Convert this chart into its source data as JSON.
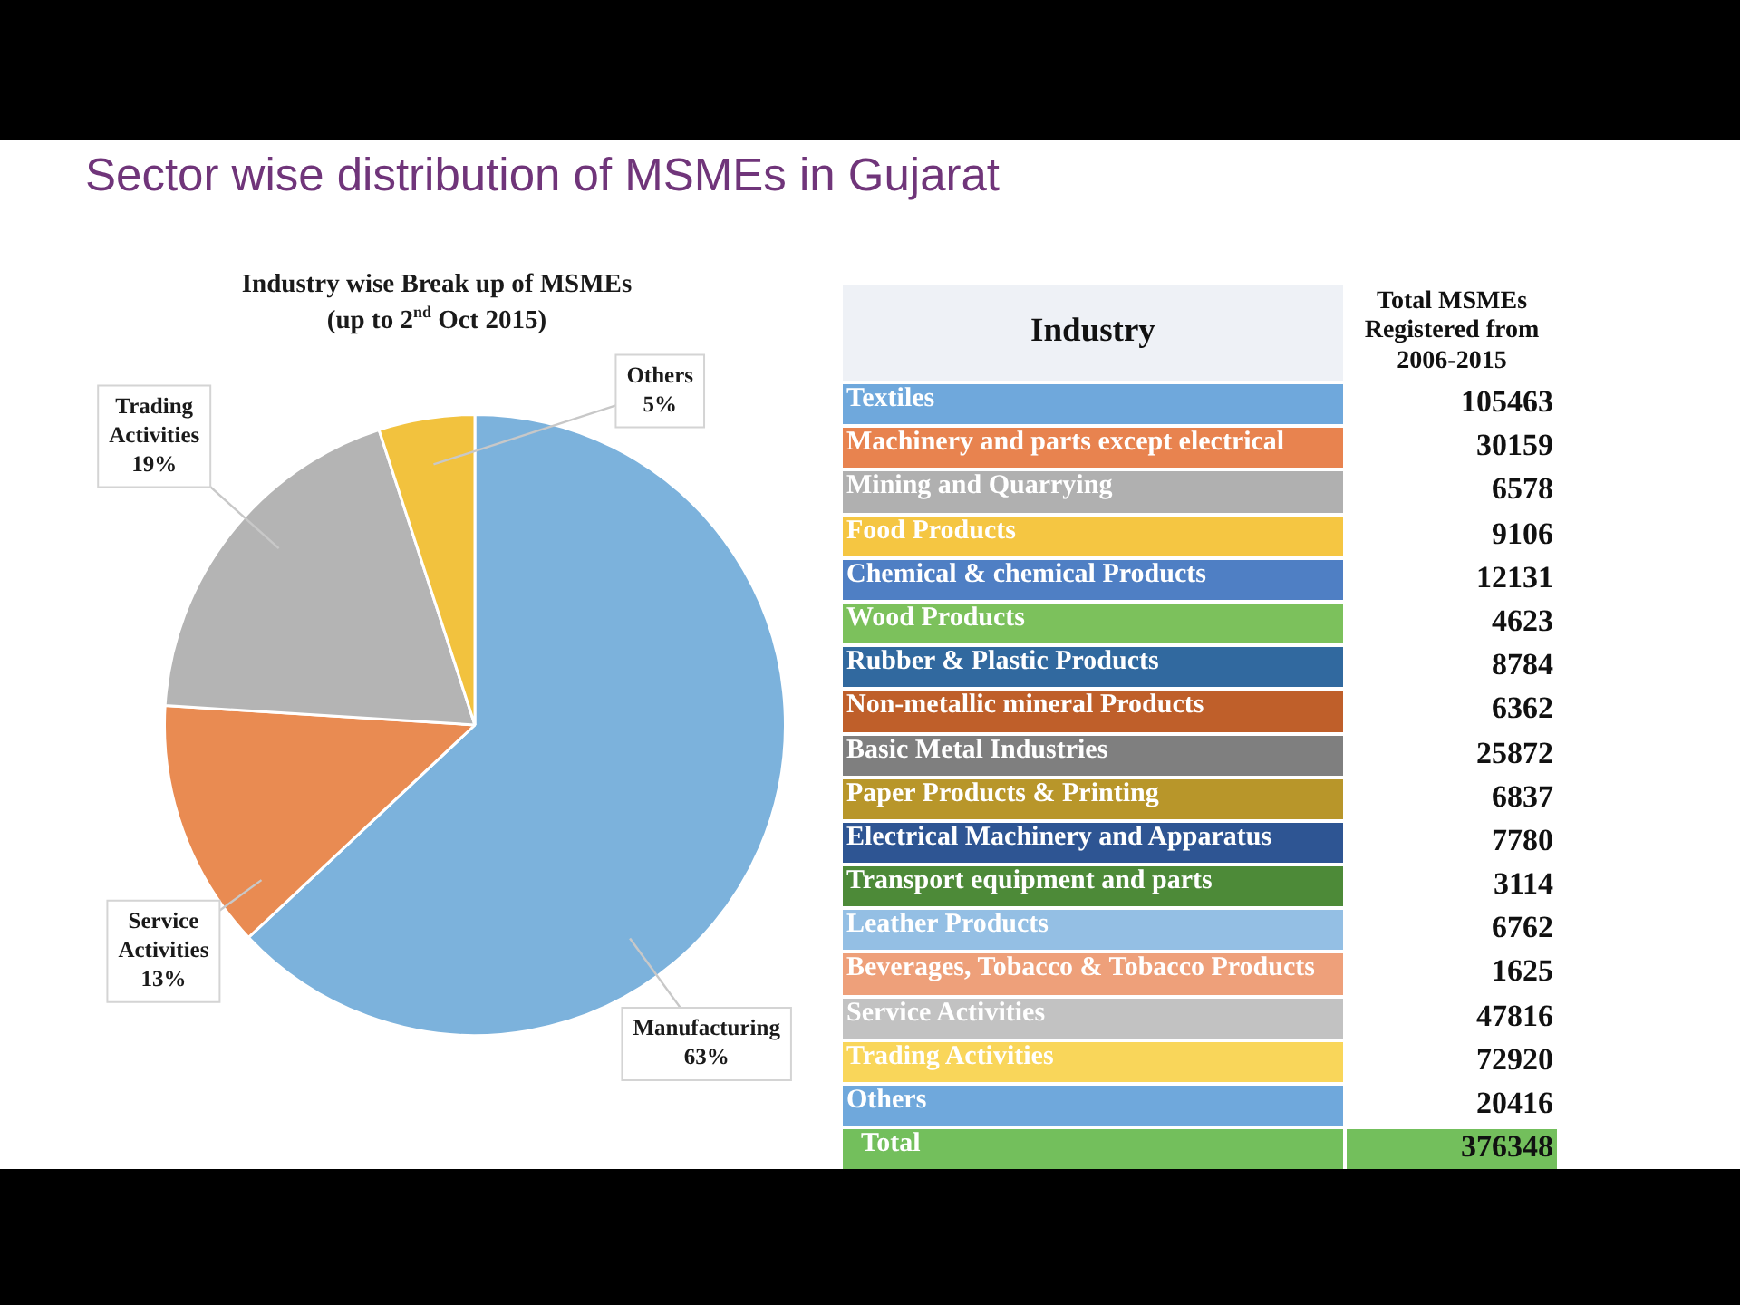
{
  "chart_data": [
    {
      "type": "pie",
      "title": "Sector wise distribution of MSMEs in Gujarat",
      "subtitle": "Industry wise Break up of MSMEs\n(up to 2$^{nd}$ Oct 2015)",
      "categories": [
        "Manufacturing",
        "Service Activities",
        "Trading Activities",
        "Others"
      ],
      "values": [
        63,
        13,
        19,
        5
      ],
      "colors": [
        "#7cb2dc",
        "#e98b52",
        "#b4b4b4",
        "#f2c23e"
      ],
      "value_labels": [
        "63%",
        "13%",
        "19%",
        "5%"
      ]
    },
    {
      "type": "other",
      "xlabel": "Industry",
      "ylabel": "Total MSMEs Registered from 2006-2015",
      "categories": [
        "Textiles",
        "Machinery and parts except electrical",
        "Mining and Quarrying",
        "Food Products",
        "Chemical & chemical Products",
        "Wood Products",
        "Rubber & Plastic Products",
        "Non-metallic mineral Products",
        "Basic Metal Industries",
        "Paper Products & Printing",
        "Electrical Machinery and Apparatus",
        "Transport equipment and parts",
        "Leather Products",
        "Beverages, Tobacco & Tobacco Products",
        "Service Activities",
        "Trading Activities",
        "Others",
        "Total"
      ],
      "values": [
        105463,
        30159,
        6578,
        9106,
        12131,
        4623,
        8784,
        6362,
        25872,
        6837,
        7780,
        3114,
        6762,
        1625,
        47816,
        72920,
        20416,
        376348
      ],
      "colors": [
        "#6fa8dc",
        "#e8834f",
        "#b0b0b0",
        "#f5c642",
        "#4f7fc4",
        "#7cc15c",
        "#31699f",
        "#bf5f2a",
        "#7f7f7f",
        "#b8962a",
        "#2e5593",
        "#4d8a38",
        "#94bfe4",
        "#eea07a",
        "#c2c2c2",
        "#f9d65a",
        "#6fa8dc",
        "#73bf5c"
      ],
      "data_labels": true
    }
  ]
}
